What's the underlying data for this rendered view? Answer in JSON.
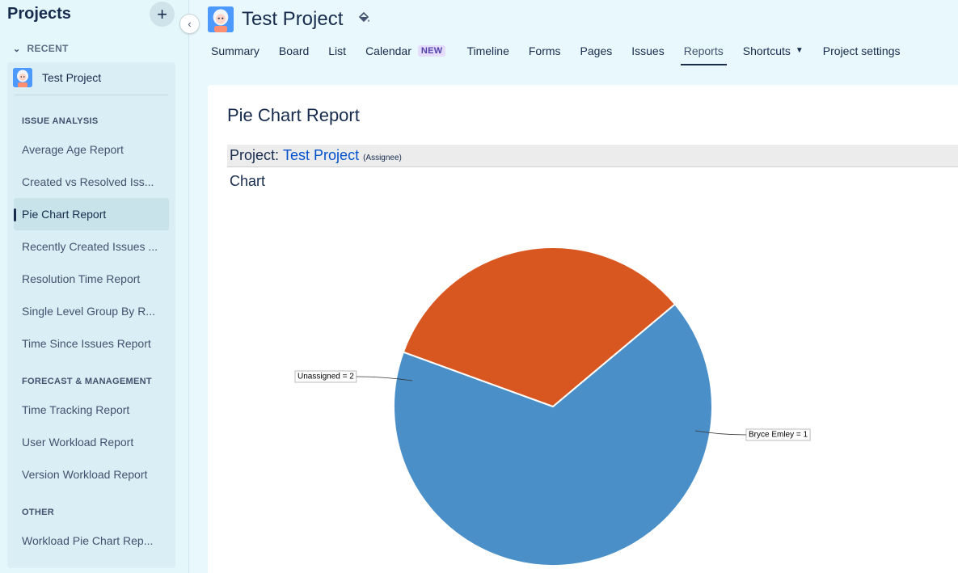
{
  "sidebar": {
    "title": "Projects",
    "add_icon": "plus-icon",
    "collapse_icon": "chevron-left-icon",
    "recent_label": "RECENT",
    "project_name": "Test Project",
    "sections": [
      {
        "label": "ISSUE ANALYSIS",
        "items": [
          "Average Age Report",
          "Created vs Resolved Iss...",
          "Pie Chart Report",
          "Recently Created Issues ...",
          "Resolution Time Report",
          "Single Level Group By R...",
          "Time Since Issues Report"
        ]
      },
      {
        "label": "FORECAST & MANAGEMENT",
        "items": [
          "Time Tracking Report",
          "User Workload Report",
          "Version Workload Report"
        ]
      },
      {
        "label": "OTHER",
        "items": [
          "Workload Pie Chart Rep..."
        ]
      }
    ],
    "active_item": "Pie Chart Report"
  },
  "header": {
    "project_title": "Test Project",
    "theme_icon": "paint-bucket-icon",
    "tabs": [
      "Summary",
      "Board",
      "List",
      "Calendar",
      "Timeline",
      "Forms",
      "Pages",
      "Issues",
      "Reports",
      "Shortcuts",
      "Project settings"
    ],
    "calendar_badge": "NEW",
    "active_tab": "Reports"
  },
  "report": {
    "title": "Pie Chart Report",
    "project_label": "Project:",
    "project_link": "Test Project",
    "statistic": "(Assignee)",
    "chart_heading": "Chart"
  },
  "chart_data": {
    "type": "pie",
    "categories": [
      "Unassigned",
      "Bryce Emley"
    ],
    "values": [
      2,
      1
    ],
    "labels": [
      "Unassigned = 2",
      "Bryce Emley = 1"
    ],
    "colors": [
      "#4a8fc8",
      "#d8561f"
    ],
    "legend": false
  }
}
